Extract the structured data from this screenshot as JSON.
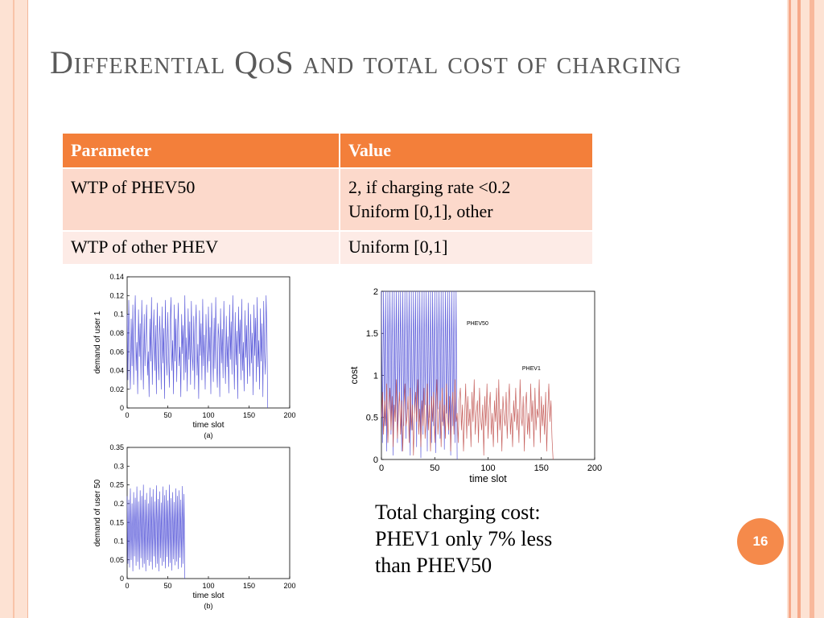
{
  "slide": {
    "title": "Differential QoS and total cost of charging",
    "page_number": "16",
    "accent_color": "#f37f3a"
  },
  "table": {
    "headers": [
      "Parameter",
      "Value"
    ],
    "rows": [
      {
        "parameter": "WTP of PHEV50",
        "value_lines": [
          "2, if charging rate <0.2",
          "Uniform [0,1], other"
        ]
      },
      {
        "parameter": "WTP of other PHEV",
        "value_lines": [
          "Uniform [0,1]"
        ]
      }
    ]
  },
  "caption_lines": [
    "Total charging cost:",
    "PHEV1 only 7% less",
    "than PHEV50"
  ],
  "chart_data": [
    {
      "type": "line",
      "xlabel": "time slot",
      "ylabel": "demand of user 1",
      "subcaption": "(a)",
      "xlim": [
        0,
        200
      ],
      "ylim": [
        0,
        0.14
      ],
      "xticks": [
        "0",
        "50",
        "100",
        "150",
        "200"
      ],
      "yticks": [
        "0",
        "0.02",
        "0.04",
        "0.06",
        "0.08",
        "0.1",
        "0.12",
        "0.14"
      ],
      "grid": false,
      "series": [
        {
          "color": "#4b4bd6",
          "x_range": [
            0,
            172
          ],
          "x_step": 1,
          "values": [
            0.1,
            0.03,
            0.115,
            0.06,
            0.02,
            0.095,
            0.045,
            0.11,
            0.025,
            0.085,
            0.12,
            0.04,
            0.07,
            0.015,
            0.105,
            0.055,
            0.09,
            0.03,
            0.115,
            0.065,
            0.02,
            0.1,
            0.045,
            0.08,
            0.11,
            0.035,
            0.06,
            0.012,
            0.095,
            0.05,
            0.118,
            0.025,
            0.075,
            0.105,
            0.04,
            0.088,
            0.015,
            0.112,
            0.058,
            0.03,
            0.098,
            0.07,
            0.02,
            0.108,
            0.048,
            0.085,
            0.01,
            0.115,
            0.062,
            0.035,
            0.102,
            0.055,
            0.022,
            0.09,
            0.118,
            0.04,
            0.072,
            0.015,
            0.11,
            0.05,
            0.095,
            0.028,
            0.08,
            0.112,
            0.045,
            0.065,
            0.012,
            0.1,
            0.058,
            0.088,
            0.03,
            0.12,
            0.038,
            0.075,
            0.018,
            0.106,
            0.052,
            0.092,
            0.025,
            0.114,
            0.06,
            0.04,
            0.098,
            0.02,
            0.082,
            0.11,
            0.035,
            0.068,
            0.01,
            0.104,
            0.056,
            0.09,
            0.03,
            0.116,
            0.045,
            0.078,
            0.02,
            0.1,
            0.062,
            0.038,
            0.108,
            0.05,
            0.086,
            0.015,
            0.112,
            0.066,
            0.028,
            0.096,
            0.042,
            0.118,
            0.055,
            0.022,
            0.09,
            0.074,
            0.012,
            0.106,
            0.048,
            0.084,
            0.032,
            0.114,
            0.06,
            0.026,
            0.098,
            0.044,
            0.076,
            0.016,
            0.11,
            0.052,
            0.092,
            0.036,
            0.12,
            0.064,
            0.02,
            0.102,
            0.046,
            0.082,
            0.01,
            0.108,
            0.058,
            0.094,
            0.03,
            0.116,
            0.04,
            0.07,
            0.018,
            0.104,
            0.054,
            0.088,
            0.026,
            0.112,
            0.062,
            0.034,
            0.1,
            0.048,
            0.08,
            0.014,
            0.11,
            0.056,
            0.096,
            0.028,
            0.118,
            0.044,
            0.072,
            0.02,
            0.106,
            0.05,
            0.09,
            0.012,
            0.114,
            0.06,
            0.036,
            0.12,
            0.08,
            0.0
          ]
        }
      ]
    },
    {
      "type": "line",
      "xlabel": "time slot",
      "ylabel": "demand of user 50",
      "subcaption": "(b)",
      "xlim": [
        0,
        200
      ],
      "ylim": [
        0,
        0.35
      ],
      "xticks": [
        "0",
        "50",
        "100",
        "150",
        "200"
      ],
      "yticks": [
        "0",
        "0.05",
        "0.1",
        "0.15",
        "0.2",
        "0.25",
        "0.3",
        "0.35"
      ],
      "grid": false,
      "series": [
        {
          "color": "#4b4bd6",
          "x_range": [
            0,
            72
          ],
          "x_step": 1,
          "values": [
            0.22,
            0.04,
            0.21,
            0.03,
            0.24,
            0.05,
            0.2,
            0.02,
            0.23,
            0.06,
            0.215,
            0.035,
            0.245,
            0.045,
            0.205,
            0.025,
            0.235,
            0.055,
            0.22,
            0.03,
            0.25,
            0.04,
            0.21,
            0.02,
            0.228,
            0.05,
            0.2,
            0.035,
            0.242,
            0.045,
            0.218,
            0.025,
            0.238,
            0.06,
            0.205,
            0.03,
            0.248,
            0.04,
            0.212,
            0.02,
            0.232,
            0.055,
            0.202,
            0.035,
            0.245,
            0.045,
            0.222,
            0.028,
            0.236,
            0.058,
            0.208,
            0.032,
            0.25,
            0.042,
            0.214,
            0.022,
            0.23,
            0.052,
            0.204,
            0.036,
            0.24,
            0.046,
            0.22,
            0.026,
            0.235,
            0.056,
            0.21,
            0.03,
            0.246,
            0.04,
            0.225,
            0.0
          ]
        }
      ]
    },
    {
      "type": "line",
      "xlabel": "time slot",
      "ylabel": "cost",
      "xlim": [
        0,
        200
      ],
      "ylim": [
        0,
        2
      ],
      "xticks": [
        "0",
        "50",
        "100",
        "150",
        "200"
      ],
      "yticks": [
        "0",
        "0.5",
        "1",
        "1.5",
        "2"
      ],
      "grid": false,
      "annotations": [
        "PHEV50",
        "PHEV1"
      ],
      "series": [
        {
          "name": "PHEV50",
          "color": "#4b4bd6",
          "x_range": [
            0,
            72
          ],
          "x_step": 1,
          "values": [
            2.0,
            0.2,
            2.0,
            0.4,
            2.0,
            0.1,
            2.0,
            0.6,
            2.0,
            0.3,
            2.0,
            0.05,
            2.0,
            0.5,
            2.0,
            0.2,
            2.0,
            0.7,
            2.0,
            0.1,
            2.0,
            0.4,
            2.0,
            0.25,
            2.0,
            0.6,
            2.0,
            0.05,
            2.0,
            0.35,
            2.0,
            0.55,
            2.0,
            0.15,
            2.0,
            0.45,
            2.0,
            0.02,
            2.0,
            0.3,
            2.0,
            0.65,
            2.0,
            0.1,
            2.0,
            0.5,
            2.0,
            0.2,
            2.0,
            0.4,
            2.0,
            0.08,
            2.0,
            0.6,
            2.0,
            0.25,
            2.0,
            0.45,
            2.0,
            0.12,
            2.0,
            0.55,
            2.0,
            0.3,
            2.0,
            0.05,
            2.0,
            0.4,
            2.0,
            0.2,
            2.0,
            0.0
          ]
        },
        {
          "name": "PHEV1",
          "color": "#c0504d",
          "x_range": [
            0,
            162
          ],
          "x_step": 1,
          "values": [
            0.5,
            0.8,
            0.3,
            0.7,
            0.4,
            0.9,
            0.2,
            0.6,
            0.85,
            0.35,
            0.75,
            0.15,
            0.65,
            0.45,
            0.95,
            0.25,
            0.55,
            0.8,
            0.3,
            0.7,
            0.1,
            0.6,
            0.9,
            0.4,
            0.5,
            0.75,
            0.2,
            0.85,
            0.35,
            0.65,
            0.05,
            0.55,
            0.8,
            0.45,
            0.95,
            0.3,
            0.6,
            0.15,
            0.7,
            0.4,
            0.85,
            0.25,
            0.5,
            0.9,
            0.35,
            0.65,
            0.1,
            0.75,
            0.45,
            0.8,
            0.2,
            0.6,
            0.95,
            0.3,
            0.55,
            0.7,
            0.15,
            0.85,
            0.4,
            0.65,
            0.25,
            0.9,
            0.5,
            0.35,
            0.75,
            0.1,
            0.6,
            0.8,
            0.3,
            0.95,
            0.45,
            0.55,
            0.2,
            0.7,
            0.85,
            0.35,
            0.65,
            0.1,
            0.5,
            0.9,
            0.25,
            0.75,
            0.4,
            0.6,
            0.15,
            0.8,
            0.45,
            0.95,
            0.3,
            0.55,
            0.7,
            0.2,
            0.85,
            0.5,
            0.35,
            0.65,
            0.05,
            0.75,
            0.4,
            0.9,
            0.25,
            0.6,
            0.8,
            0.3,
            0.55,
            0.15,
            0.7,
            0.45,
            0.85,
            0.2,
            0.95,
            0.35,
            0.6,
            0.1,
            0.75,
            0.5,
            0.4,
            0.8,
            0.25,
            0.65,
            0.9,
            0.3,
            0.55,
            0.15,
            0.7,
            0.45,
            0.85,
            0.35,
            0.6,
            0.2,
            0.95,
            0.5,
            0.4,
            0.75,
            0.1,
            0.65,
            0.8,
            0.3,
            0.55,
            0.25,
            0.9,
            0.45,
            0.7,
            0.15,
            0.85,
            0.35,
            0.6,
            0.5,
            0.95,
            0.2,
            0.75,
            0.4,
            0.65,
            0.3,
            0.8,
            0.1,
            0.55,
            0.9,
            0.45,
            0.7,
            0.25,
            0.0
          ]
        }
      ]
    }
  ]
}
